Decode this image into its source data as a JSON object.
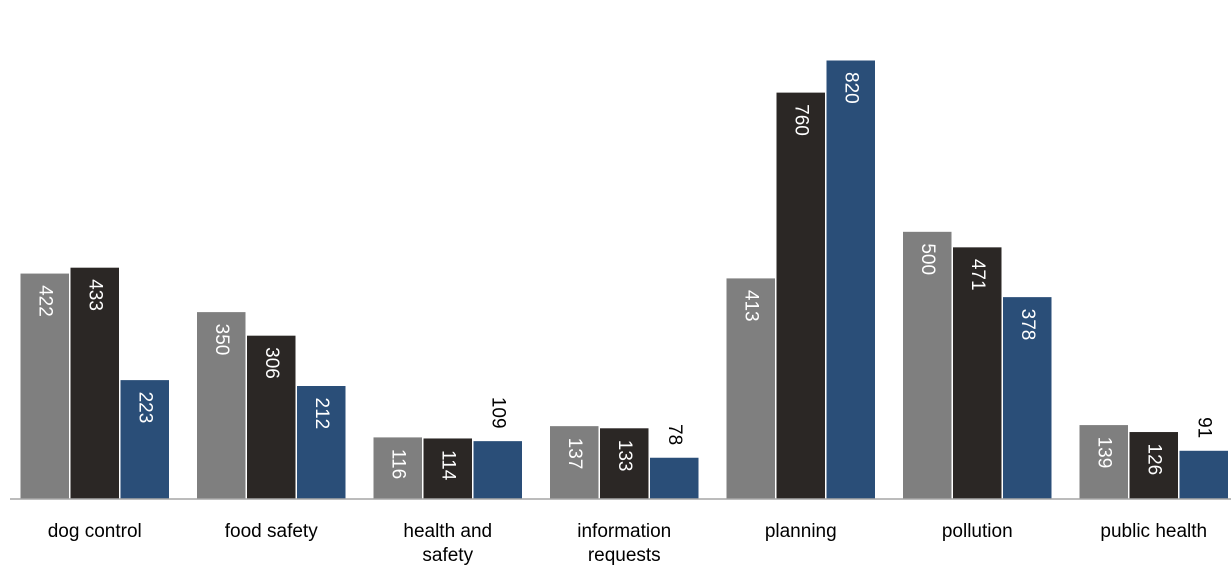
{
  "chart_data": {
    "type": "bar",
    "categories": [
      [
        "dog control"
      ],
      [
        "food safety"
      ],
      [
        "health and",
        "safety"
      ],
      [
        "information",
        "requests"
      ],
      [
        "planning"
      ],
      [
        "pollution"
      ],
      [
        "public health"
      ]
    ],
    "series": [
      {
        "values": [
          422,
          350,
          116,
          137,
          413,
          500,
          139
        ],
        "color": "#7f7f7f"
      },
      {
        "values": [
          433,
          306,
          114,
          133,
          760,
          471,
          126
        ],
        "color": "#2b2725"
      },
      {
        "values": [
          223,
          212,
          109,
          78,
          820,
          378,
          91
        ],
        "color": "#2a4e78"
      }
    ],
    "title": "",
    "xlabel": "",
    "ylabel": "",
    "ylim": [
      0,
      820
    ],
    "grid": false,
    "legend": "none",
    "data_labels": "rotated-90"
  }
}
